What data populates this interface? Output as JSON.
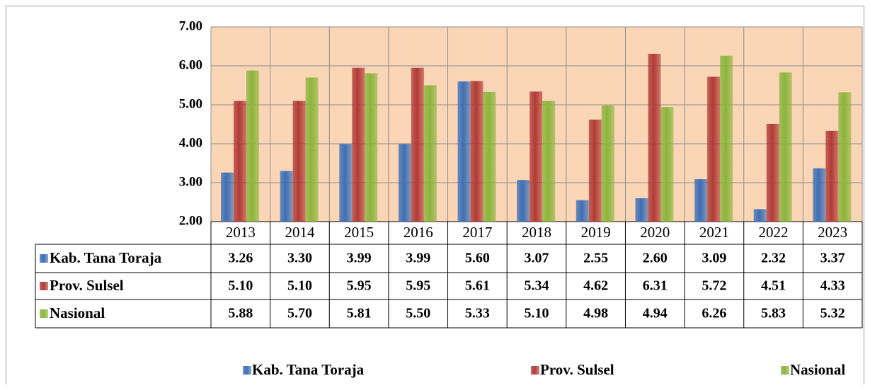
{
  "chart_data": {
    "type": "bar",
    "categories": [
      "2013",
      "2014",
      "2015",
      "2016",
      "2017",
      "2018",
      "2019",
      "2020",
      "2021",
      "2022",
      "2023"
    ],
    "series": [
      {
        "name": "Kab. Tana Toraja",
        "color": "#3d6fb6",
        "values": [
          3.26,
          3.3,
          3.99,
          3.99,
          5.6,
          3.07,
          2.55,
          2.6,
          3.09,
          2.32,
          3.37
        ],
        "value_labels": [
          "3.26",
          "3.30",
          "3.99",
          "3.99",
          "5.60",
          "3.07",
          "2.55",
          "2.60",
          "3.09",
          "2.32",
          "3.37"
        ]
      },
      {
        "name": "Prov. Sulsel",
        "color": "#b13b36",
        "values": [
          5.1,
          5.1,
          5.95,
          5.95,
          5.61,
          5.34,
          4.62,
          6.31,
          5.72,
          4.51,
          4.33
        ],
        "value_labels": [
          "5.10",
          "5.10",
          "5.95",
          "5.95",
          "5.61",
          "5.34",
          "4.62",
          "6.31",
          "5.72",
          "4.51",
          "4.33"
        ]
      },
      {
        "name": "Nasional",
        "color": "#8cb53c",
        "values": [
          5.88,
          5.7,
          5.81,
          5.5,
          5.33,
          5.1,
          4.98,
          4.94,
          6.26,
          5.83,
          5.32
        ],
        "value_labels": [
          "5.88",
          "5.70",
          "5.81",
          "5.50",
          "5.33",
          "5.10",
          "4.98",
          "4.94",
          "6.26",
          "5.83",
          "5.32"
        ]
      }
    ],
    "ylim": [
      2,
      7
    ],
    "yticks": [
      {
        "value": 2,
        "label": "2.00"
      },
      {
        "value": 3,
        "label": "3.00"
      },
      {
        "value": 4,
        "label": "4.00"
      },
      {
        "value": 5,
        "label": "5.00"
      },
      {
        "value": 6,
        "label": "6.00"
      },
      {
        "value": 7,
        "label": "7.00"
      }
    ],
    "grid": true,
    "legend": "bottom"
  }
}
